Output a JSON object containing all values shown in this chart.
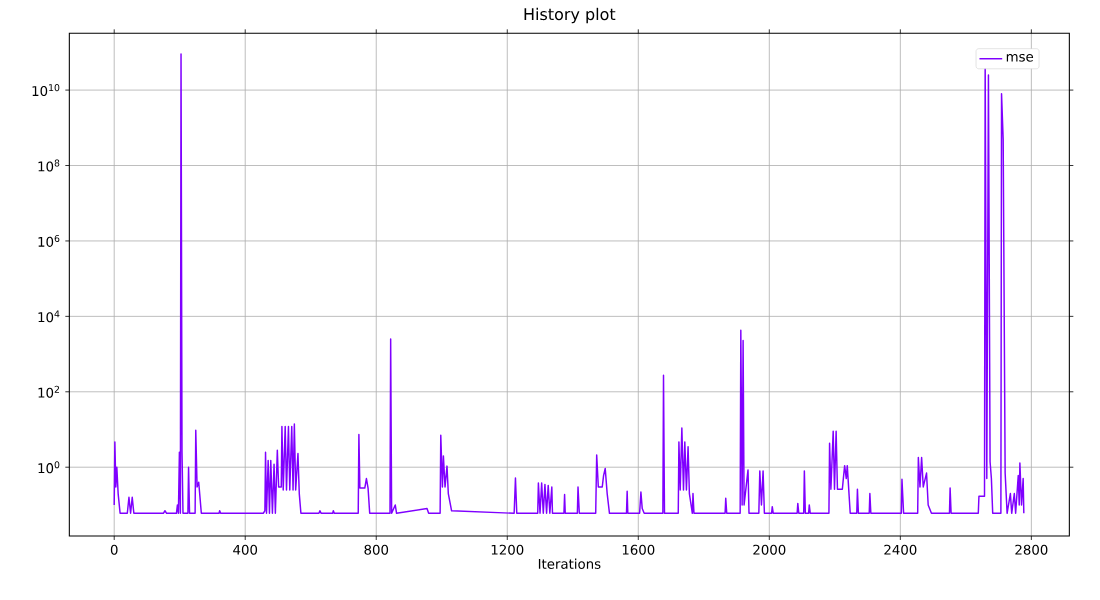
{
  "chart_data": {
    "type": "line",
    "title": "History plot",
    "xlabel": "Iterations",
    "log": "y",
    "grid": true,
    "legend": "top right",
    "xlim": [
      -137,
      2916
    ],
    "ylim": [
      0.015,
      320000000000.0
    ],
    "xticks": [
      0,
      400,
      800,
      1200,
      1600,
      2000,
      2400,
      2800
    ],
    "yticks": [
      {
        "value": 1,
        "label": "10$^{0}$"
      },
      {
        "value": 100,
        "label": "10$^{2}$"
      },
      {
        "value": 10000,
        "label": "10$^{4}$"
      },
      {
        "value": 1000000,
        "label": "10$^{6}$"
      },
      {
        "value": 100000000,
        "label": "10$^{8}$"
      },
      {
        "value": 10000000000,
        "label": "10$^{10}$"
      }
    ],
    "x": [
      0,
      2,
      5,
      8,
      12,
      18,
      40,
      45,
      50,
      55,
      60,
      150,
      155,
      160,
      190,
      193,
      196,
      199,
      202,
      204,
      207,
      210,
      225,
      227,
      230,
      247,
      249,
      253,
      258,
      266,
      320,
      322,
      325,
      455,
      460,
      462,
      465,
      470,
      474,
      478,
      483,
      488,
      492,
      498,
      502,
      510,
      512,
      516,
      522,
      526,
      532,
      536,
      542,
      546,
      550,
      554,
      561,
      565,
      570,
      625,
      628,
      632,
      667,
      669,
      672,
      745,
      747,
      750,
      765,
      770,
      775,
      780,
      842,
      844,
      847,
      858,
      862,
      955,
      960,
      995,
      997,
      1002,
      1005,
      1010,
      1016,
      1020,
      1030,
      1221,
      1225,
      1229,
      1293,
      1295,
      1300,
      1305,
      1310,
      1315,
      1320,
      1325,
      1330,
      1336,
      1338,
      1373,
      1375,
      1377,
      1414,
      1416,
      1420,
      1470,
      1473,
      1478,
      1490,
      1494,
      1499,
      1505,
      1512,
      1564,
      1566,
      1568,
      1604,
      1608,
      1612,
      1618,
      1675,
      1677,
      1680,
      1722,
      1724,
      1728,
      1733,
      1738,
      1742,
      1747,
      1752,
      1756,
      1765,
      1767,
      1770,
      1865,
      1867,
      1870,
      1911,
      1913,
      1917,
      1920,
      1923,
      1935,
      1938,
      1968,
      1971,
      1976,
      1981,
      1985,
      2007,
      2009,
      2012,
      2085,
      2087,
      2090,
      2105,
      2107,
      2110,
      2120,
      2122,
      2125,
      2182,
      2184,
      2188,
      2195,
      2199,
      2204,
      2208,
      2223,
      2226,
      2230,
      2235,
      2238,
      2247,
      2267,
      2269,
      2272,
      2305,
      2307,
      2310,
      2403,
      2405,
      2410,
      2453,
      2455,
      2460,
      2465,
      2470,
      2480,
      2485,
      2495,
      2550,
      2552,
      2555,
      2638,
      2640,
      2650,
      2657,
      2659,
      2664,
      2669,
      2674,
      2678,
      2682,
      2707,
      2709,
      2714,
      2720,
      2726,
      2736,
      2740,
      2748,
      2752,
      2760,
      2763,
      2765,
      2770,
      2775,
      2777
    ],
    "series": [
      {
        "name": "mse",
        "color": "#7f00ff",
        "values": [
          0.1,
          4.7,
          0.3,
          1.0,
          0.2,
          0.06,
          0.06,
          0.16,
          0.06,
          0.16,
          0.06,
          0.06,
          0.07,
          0.06,
          0.06,
          0.1,
          0.06,
          2.5,
          0.06,
          90000000000.0,
          2.5,
          0.06,
          0.06,
          1.0,
          0.06,
          0.06,
          9.5,
          0.3,
          0.4,
          0.06,
          0.06,
          0.07,
          0.06,
          0.06,
          0.07,
          2.5,
          0.06,
          1.5,
          0.06,
          1.5,
          0.06,
          1.2,
          0.06,
          2.8,
          0.3,
          0.3,
          12,
          0.25,
          12,
          0.25,
          12,
          0.25,
          12,
          0.25,
          14,
          0.25,
          2.3,
          0.2,
          0.06,
          0.06,
          0.07,
          0.06,
          0.06,
          0.07,
          0.06,
          0.06,
          7.4,
          0.28,
          0.28,
          0.5,
          0.28,
          0.06,
          0.06,
          2500,
          0.06,
          0.1,
          0.06,
          0.08,
          0.06,
          0.06,
          7,
          0.3,
          2,
          0.3,
          1.07,
          0.2,
          0.07,
          0.06,
          0.52,
          0.06,
          0.06,
          0.38,
          0.06,
          0.38,
          0.06,
          0.35,
          0.06,
          0.33,
          0.06,
          0.3,
          0.06,
          0.06,
          0.19,
          0.06,
          0.06,
          0.3,
          0.06,
          0.06,
          2.1,
          0.3,
          0.3,
          0.6,
          0.93,
          0.2,
          0.06,
          0.06,
          0.23,
          0.06,
          0.06,
          0.22,
          0.08,
          0.06,
          0.06,
          275,
          0.06,
          0.06,
          4.7,
          0.25,
          11,
          0.25,
          4.7,
          0.25,
          3.5,
          0.2,
          0.06,
          0.2,
          0.06,
          0.06,
          0.15,
          0.06,
          0.06,
          4300,
          0.1,
          2300,
          0.1,
          0.85,
          0.06,
          0.06,
          0.8,
          0.1,
          0.8,
          0.06,
          0.06,
          0.09,
          0.06,
          0.06,
          0.11,
          0.06,
          0.06,
          0.8,
          0.06,
          0.06,
          0.1,
          0.06,
          0.06,
          4.3,
          0.26,
          9,
          0.26,
          9,
          0.26,
          0.26,
          0.5,
          1.1,
          0.5,
          1.1,
          0.06,
          0.06,
          0.26,
          0.06,
          0.06,
          0.2,
          0.06,
          0.06,
          0.48,
          0.06,
          0.06,
          1.8,
          0.3,
          1.8,
          0.3,
          0.7,
          0.1,
          0.06,
          0.06,
          0.28,
          0.06,
          0.06,
          0.17,
          0.17,
          0.17,
          60000000000.0,
          0.5,
          25000000000.0,
          1.4,
          0.5,
          0.06,
          0.06,
          8000000000.0,
          500000000.0,
          0.7,
          0.06,
          0.2,
          0.06,
          0.2,
          0.06,
          0.6,
          0.1,
          1.3,
          0.1,
          0.5,
          0.06
        ]
      }
    ]
  }
}
